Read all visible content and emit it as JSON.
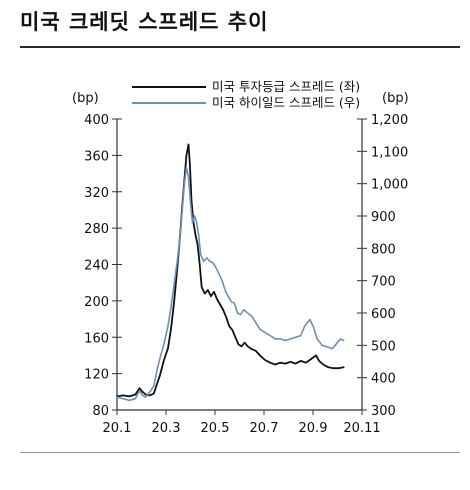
{
  "page": {
    "title": "미국 크레딧 스프레드 추이"
  },
  "chart_data": {
    "type": "line",
    "title": "미국 크레딧 스프레드 추이",
    "y_left_unit": "(bp)",
    "y_right_unit": "(bp)",
    "ylim_left": [
      80,
      400
    ],
    "ylim_right": [
      300,
      1200
    ],
    "yticks_left": [
      "400",
      "360",
      "320",
      "280",
      "240",
      "200",
      "160",
      "120",
      "80"
    ],
    "yticks_right": [
      "1,200",
      "1,100",
      "1,000",
      "900",
      "800",
      "700",
      "600",
      "500",
      "400",
      "300"
    ],
    "xticks": [
      "20.1",
      "20.3",
      "20.5",
      "20.7",
      "20.9",
      "20.11"
    ],
    "xlim": [
      0,
      12
    ],
    "legend_position": "top-right",
    "grid": false,
    "colors": {
      "series_ig": "#111111",
      "series_hy": "#6f8fb5",
      "axis": "#333333"
    },
    "series": [
      {
        "name": "미국 투자등급 스프레드 (좌)",
        "axis": "left",
        "color": "#111111",
        "points": [
          [
            0.0,
            95
          ],
          [
            0.3,
            96
          ],
          [
            0.6,
            95
          ],
          [
            0.9,
            97
          ],
          [
            1.1,
            104
          ],
          [
            1.25,
            100
          ],
          [
            1.4,
            97
          ],
          [
            1.6,
            96
          ],
          [
            1.8,
            98
          ],
          [
            1.95,
            108
          ],
          [
            2.1,
            118
          ],
          [
            2.3,
            135
          ],
          [
            2.5,
            148
          ],
          [
            2.65,
            170
          ],
          [
            2.8,
            200
          ],
          [
            2.95,
            235
          ],
          [
            3.1,
            275
          ],
          [
            3.2,
            305
          ],
          [
            3.3,
            333
          ],
          [
            3.4,
            360
          ],
          [
            3.5,
            372
          ],
          [
            3.57,
            350
          ],
          [
            3.65,
            310
          ],
          [
            3.75,
            285
          ],
          [
            3.85,
            272
          ],
          [
            3.95,
            262
          ],
          [
            4.05,
            240
          ],
          [
            4.15,
            215
          ],
          [
            4.3,
            208
          ],
          [
            4.45,
            212
          ],
          [
            4.6,
            205
          ],
          [
            4.75,
            210
          ],
          [
            4.9,
            202
          ],
          [
            5.05,
            196
          ],
          [
            5.2,
            190
          ],
          [
            5.35,
            182
          ],
          [
            5.5,
            172
          ],
          [
            5.65,
            168
          ],
          [
            5.8,
            160
          ],
          [
            5.95,
            152
          ],
          [
            6.1,
            150
          ],
          [
            6.25,
            154
          ],
          [
            6.4,
            150
          ],
          [
            6.6,
            147
          ],
          [
            6.8,
            145
          ],
          [
            7.0,
            140
          ],
          [
            7.25,
            135
          ],
          [
            7.5,
            132
          ],
          [
            7.75,
            130
          ],
          [
            8.0,
            132
          ],
          [
            8.25,
            131
          ],
          [
            8.5,
            133
          ],
          [
            8.75,
            131
          ],
          [
            9.0,
            134
          ],
          [
            9.25,
            132
          ],
          [
            9.5,
            136
          ],
          [
            9.75,
            140
          ],
          [
            9.9,
            134
          ],
          [
            10.1,
            130
          ],
          [
            10.35,
            127
          ],
          [
            10.6,
            126
          ],
          [
            10.85,
            126
          ],
          [
            11.1,
            127
          ]
        ]
      },
      {
        "name": "미국 하이일드 스프레드 (우)",
        "axis": "right",
        "color": "#6f8fb5",
        "points": [
          [
            0.0,
            340
          ],
          [
            0.3,
            335
          ],
          [
            0.6,
            330
          ],
          [
            0.9,
            335
          ],
          [
            1.1,
            360
          ],
          [
            1.25,
            345
          ],
          [
            1.4,
            340
          ],
          [
            1.6,
            355
          ],
          [
            1.8,
            375
          ],
          [
            1.95,
            420
          ],
          [
            2.1,
            460
          ],
          [
            2.3,
            505
          ],
          [
            2.5,
            560
          ],
          [
            2.65,
            620
          ],
          [
            2.8,
            690
          ],
          [
            2.95,
            760
          ],
          [
            3.1,
            840
          ],
          [
            3.2,
            920
          ],
          [
            3.3,
            1000
          ],
          [
            3.4,
            1050
          ],
          [
            3.5,
            1020
          ],
          [
            3.6,
            940
          ],
          [
            3.7,
            880
          ],
          [
            3.8,
            900
          ],
          [
            3.9,
            880
          ],
          [
            4.0,
            840
          ],
          [
            4.1,
            780
          ],
          [
            4.25,
            760
          ],
          [
            4.4,
            770
          ],
          [
            4.55,
            760
          ],
          [
            4.7,
            755
          ],
          [
            4.85,
            740
          ],
          [
            5.0,
            720
          ],
          [
            5.15,
            700
          ],
          [
            5.3,
            670
          ],
          [
            5.45,
            650
          ],
          [
            5.6,
            635
          ],
          [
            5.75,
            630
          ],
          [
            5.9,
            600
          ],
          [
            6.05,
            595
          ],
          [
            6.2,
            610
          ],
          [
            6.4,
            600
          ],
          [
            6.6,
            590
          ],
          [
            6.8,
            570
          ],
          [
            7.0,
            550
          ],
          [
            7.25,
            540
          ],
          [
            7.5,
            530
          ],
          [
            7.75,
            520
          ],
          [
            8.0,
            520
          ],
          [
            8.25,
            515
          ],
          [
            8.5,
            520
          ],
          [
            8.75,
            525
          ],
          [
            9.0,
            530
          ],
          [
            9.2,
            560
          ],
          [
            9.45,
            580
          ],
          [
            9.6,
            560
          ],
          [
            9.8,
            520
          ],
          [
            10.05,
            500
          ],
          [
            10.3,
            495
          ],
          [
            10.55,
            490
          ],
          [
            10.75,
            505
          ],
          [
            10.95,
            520
          ],
          [
            11.1,
            515
          ]
        ]
      }
    ]
  }
}
